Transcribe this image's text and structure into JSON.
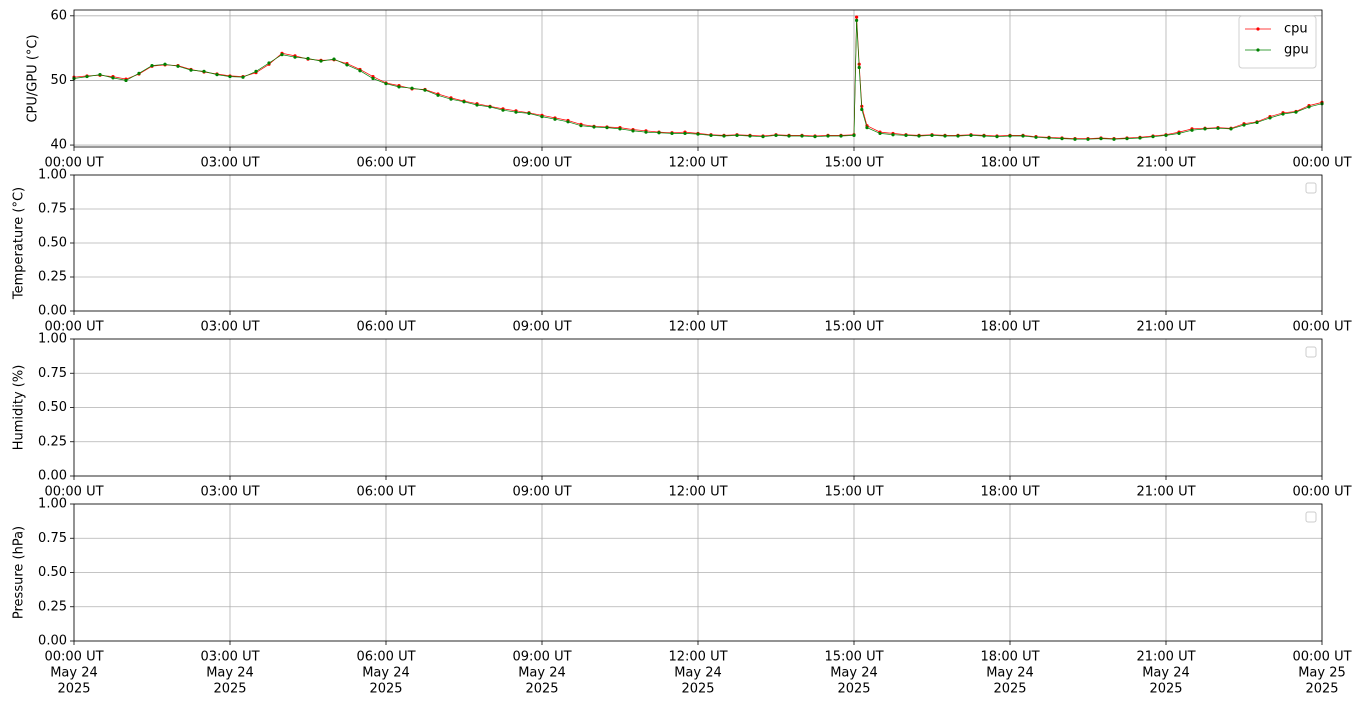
{
  "chart_data": [
    {
      "type": "line",
      "ylabel": "CPU/GPU (°C)",
      "grid": true,
      "legend": "upper right",
      "xlim": [
        0,
        24
      ],
      "ylim": [
        39.7,
        60.9
      ],
      "yticks": [
        40,
        50,
        60
      ],
      "xticks": [
        {
          "value": 0,
          "label": "00:00 UT"
        },
        {
          "value": 3,
          "label": "03:00 UT"
        },
        {
          "value": 6,
          "label": "06:00 UT"
        },
        {
          "value": 9,
          "label": "09:00 UT"
        },
        {
          "value": 12,
          "label": "12:00 UT"
        },
        {
          "value": 15,
          "label": "15:00 UT"
        },
        {
          "value": 18,
          "label": "18:00 UT"
        },
        {
          "value": 21,
          "label": "21:00 UT"
        },
        {
          "value": 24,
          "label": "00:00 UT"
        }
      ],
      "x": [
        0,
        0.25,
        0.5,
        0.75,
        1,
        1.25,
        1.5,
        1.75,
        2,
        2.25,
        2.5,
        2.75,
        3,
        3.25,
        3.5,
        3.75,
        4,
        4.25,
        4.5,
        4.75,
        5,
        5.25,
        5.5,
        5.75,
        6,
        6.25,
        6.5,
        6.75,
        7,
        7.25,
        7.5,
        7.75,
        8,
        8.25,
        8.5,
        8.75,
        9,
        9.25,
        9.5,
        9.75,
        10,
        10.25,
        10.5,
        10.75,
        11,
        11.25,
        11.5,
        11.75,
        12,
        12.25,
        12.5,
        12.75,
        13,
        13.25,
        13.5,
        13.75,
        14,
        14.25,
        14.5,
        14.75,
        15,
        15.05,
        15.1,
        15.15,
        15.25,
        15.5,
        15.75,
        16,
        16.25,
        16.5,
        16.75,
        17,
        17.25,
        17.5,
        17.75,
        18,
        18.25,
        18.5,
        18.75,
        19,
        19.25,
        19.5,
        19.75,
        20,
        20.25,
        20.5,
        20.75,
        21,
        21.25,
        21.5,
        21.75,
        22,
        22.25,
        22.5,
        22.75,
        23,
        23.25,
        23.5,
        23.75,
        24
      ],
      "series": [
        {
          "name": "cpu",
          "color": "#ff0000",
          "values": [
            50.5,
            50.7,
            50.8,
            50.6,
            50.2,
            51.0,
            52.2,
            52.4,
            52.3,
            51.7,
            51.3,
            51.0,
            50.7,
            50.6,
            51.2,
            52.5,
            54.2,
            53.8,
            53.3,
            53.1,
            53.2,
            52.6,
            51.7,
            50.6,
            49.6,
            49.2,
            48.7,
            48.6,
            47.9,
            47.3,
            46.8,
            46.4,
            46.0,
            45.6,
            45.3,
            45.0,
            44.6,
            44.2,
            43.8,
            43.2,
            42.9,
            42.8,
            42.7,
            42.4,
            42.2,
            42.0,
            41.9,
            42.0,
            41.8,
            41.6,
            41.5,
            41.6,
            41.5,
            41.4,
            41.6,
            41.5,
            41.5,
            41.4,
            41.5,
            41.5,
            41.6,
            59.8,
            52.5,
            46.0,
            43.0,
            42.0,
            41.8,
            41.6,
            41.5,
            41.6,
            41.5,
            41.5,
            41.6,
            41.5,
            41.4,
            41.5,
            41.5,
            41.3,
            41.2,
            41.1,
            41.0,
            41.0,
            41.1,
            41.0,
            41.1,
            41.2,
            41.4,
            41.6,
            42.0,
            42.5,
            42.6,
            42.7,
            42.6,
            43.3,
            43.6,
            44.4,
            45.0,
            45.2,
            46.1,
            46.6
          ]
        },
        {
          "name": "gpu",
          "color": "#008000",
          "values": [
            50.3,
            50.6,
            50.9,
            50.4,
            50.0,
            51.1,
            52.3,
            52.5,
            52.2,
            51.6,
            51.4,
            50.9,
            50.6,
            50.5,
            51.4,
            52.7,
            54.0,
            53.6,
            53.4,
            53.0,
            53.3,
            52.4,
            51.5,
            50.3,
            49.5,
            49.0,
            48.8,
            48.5,
            47.7,
            47.1,
            46.7,
            46.2,
            45.9,
            45.4,
            45.1,
            44.9,
            44.4,
            44.0,
            43.6,
            43.0,
            42.8,
            42.7,
            42.5,
            42.2,
            42.0,
            41.9,
            41.8,
            41.8,
            41.7,
            41.5,
            41.4,
            41.5,
            41.4,
            41.3,
            41.5,
            41.4,
            41.4,
            41.3,
            41.4,
            41.4,
            41.5,
            59.3,
            52.0,
            45.5,
            42.7,
            41.8,
            41.6,
            41.5,
            41.4,
            41.5,
            41.4,
            41.4,
            41.5,
            41.4,
            41.3,
            41.4,
            41.4,
            41.2,
            41.1,
            41.0,
            40.9,
            40.9,
            41.0,
            40.9,
            41.0,
            41.1,
            41.3,
            41.5,
            41.8,
            42.3,
            42.5,
            42.6,
            42.5,
            43.1,
            43.5,
            44.2,
            44.8,
            45.1,
            45.9,
            46.4
          ]
        }
      ]
    },
    {
      "type": "line",
      "ylabel": "Temperature (°C)",
      "grid": true,
      "legend": "upper right",
      "xlim": [
        0,
        24
      ],
      "ylim": [
        0,
        1
      ],
      "yticks": [
        {
          "value": 0,
          "label": "0.00"
        },
        {
          "value": 0.25,
          "label": "0.25"
        },
        {
          "value": 0.5,
          "label": "0.50"
        },
        {
          "value": 0.75,
          "label": "0.75"
        },
        {
          "value": 1,
          "label": "1.00"
        }
      ],
      "xticks": [
        {
          "value": 0,
          "label": "00:00 UT"
        },
        {
          "value": 3,
          "label": "03:00 UT"
        },
        {
          "value": 6,
          "label": "06:00 UT"
        },
        {
          "value": 9,
          "label": "09:00 UT"
        },
        {
          "value": 12,
          "label": "12:00 UT"
        },
        {
          "value": 15,
          "label": "15:00 UT"
        },
        {
          "value": 18,
          "label": "18:00 UT"
        },
        {
          "value": 21,
          "label": "21:00 UT"
        },
        {
          "value": 24,
          "label": "00:00 UT"
        }
      ],
      "series": []
    },
    {
      "type": "line",
      "ylabel": "Humidity (%)",
      "grid": true,
      "legend": "upper right",
      "xlim": [
        0,
        24
      ],
      "ylim": [
        0,
        1
      ],
      "yticks": [
        {
          "value": 0,
          "label": "0.00"
        },
        {
          "value": 0.25,
          "label": "0.25"
        },
        {
          "value": 0.5,
          "label": "0.50"
        },
        {
          "value": 0.75,
          "label": "0.75"
        },
        {
          "value": 1,
          "label": "1.00"
        }
      ],
      "xticks": [
        {
          "value": 0,
          "label": "00:00 UT"
        },
        {
          "value": 3,
          "label": "03:00 UT"
        },
        {
          "value": 6,
          "label": "06:00 UT"
        },
        {
          "value": 9,
          "label": "09:00 UT"
        },
        {
          "value": 12,
          "label": "12:00 UT"
        },
        {
          "value": 15,
          "label": "15:00 UT"
        },
        {
          "value": 18,
          "label": "18:00 UT"
        },
        {
          "value": 21,
          "label": "21:00 UT"
        },
        {
          "value": 24,
          "label": "00:00 UT"
        }
      ],
      "series": []
    },
    {
      "type": "line",
      "ylabel": "Pressure (hPa)",
      "grid": true,
      "legend": "upper right",
      "xlim": [
        0,
        24
      ],
      "ylim": [
        0,
        1
      ],
      "yticks": [
        {
          "value": 0,
          "label": "0.00"
        },
        {
          "value": 0.25,
          "label": "0.25"
        },
        {
          "value": 0.5,
          "label": "0.50"
        },
        {
          "value": 0.75,
          "label": "0.75"
        },
        {
          "value": 1,
          "label": "1.00"
        }
      ],
      "xticks": [
        {
          "value": 0,
          "label": [
            "00:00 UT",
            "May 24",
            "2025"
          ]
        },
        {
          "value": 3,
          "label": [
            "03:00 UT",
            "May 24",
            "2025"
          ]
        },
        {
          "value": 6,
          "label": [
            "06:00 UT",
            "May 24",
            "2025"
          ]
        },
        {
          "value": 9,
          "label": [
            "09:00 UT",
            "May 24",
            "2025"
          ]
        },
        {
          "value": 12,
          "label": [
            "12:00 UT",
            "May 24",
            "2025"
          ]
        },
        {
          "value": 15,
          "label": [
            "15:00 UT",
            "May 24",
            "2025"
          ]
        },
        {
          "value": 18,
          "label": [
            "18:00 UT",
            "May 24",
            "2025"
          ]
        },
        {
          "value": 21,
          "label": [
            "21:00 UT",
            "May 24",
            "2025"
          ]
        },
        {
          "value": 24,
          "label": [
            "00:00 UT",
            "May 25",
            "2025"
          ]
        }
      ],
      "series": []
    }
  ]
}
